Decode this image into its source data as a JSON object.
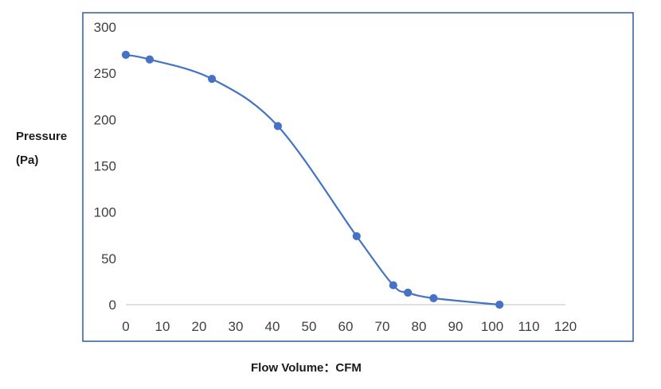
{
  "chart_data": {
    "type": "line",
    "title": "",
    "ylabel_lines": [
      "Pressure",
      "(Pa)"
    ],
    "xlabel": "Flow Volume：CFM",
    "xlim": [
      0,
      120
    ],
    "ylim": [
      0,
      300
    ],
    "x_ticks": [
      "0",
      "10",
      "20",
      "30",
      "40",
      "50",
      "60",
      "70",
      "80",
      "90",
      "100",
      "110",
      "120"
    ],
    "y_ticks": [
      "0",
      "50",
      "100",
      "150",
      "200",
      "250",
      "300"
    ],
    "grid": false,
    "legend": "none",
    "series": [
      {
        "color": "#4472c4",
        "smooth": true,
        "markers": true,
        "points": [
          {
            "x": 0,
            "y": 270
          },
          {
            "x": 6.5,
            "y": 265
          },
          {
            "x": 23.5,
            "y": 244
          },
          {
            "x": 41.5,
            "y": 193
          },
          {
            "x": 63,
            "y": 74
          },
          {
            "x": 73,
            "y": 21
          },
          {
            "x": 77,
            "y": 13
          },
          {
            "x": 84,
            "y": 7
          },
          {
            "x": 102,
            "y": 0
          }
        ]
      }
    ]
  }
}
